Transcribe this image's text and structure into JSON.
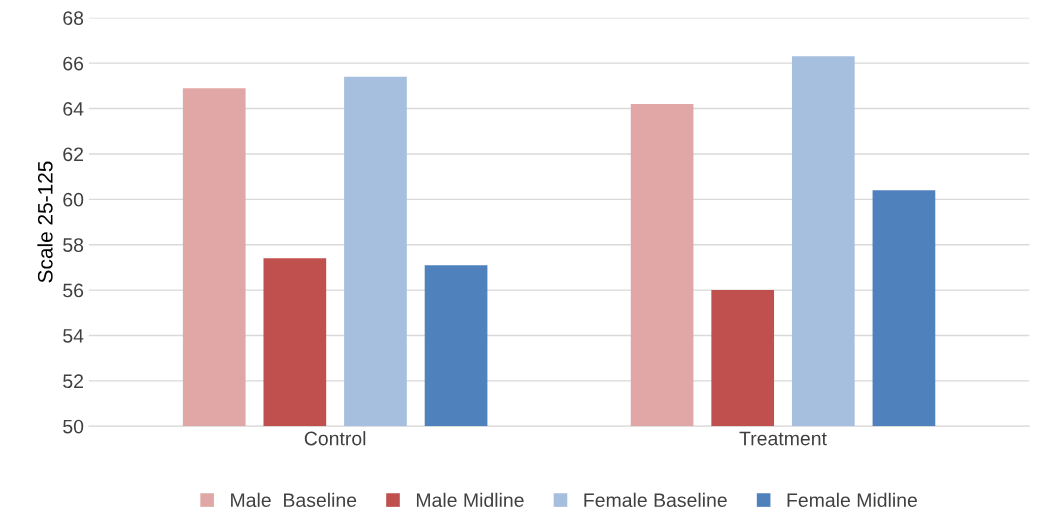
{
  "chart_data": {
    "type": "bar",
    "ylabel": "Scale 25-125",
    "categories": [
      "Control",
      "Treatment"
    ],
    "series": [
      {
        "name": "Male  Baseline",
        "color": "#e0a7a6",
        "values": [
          64.9,
          64.2
        ]
      },
      {
        "name": "Male Midline",
        "color": "#c0504d",
        "values": [
          57.4,
          56.0
        ]
      },
      {
        "name": "Female Baseline",
        "color": "#a7bfde",
        "values": [
          65.4,
          66.3
        ]
      },
      {
        "name": "Female Midline",
        "color": "#4f81bd",
        "values": [
          57.1,
          60.4
        ]
      }
    ],
    "ylim": [
      50,
      68
    ],
    "yticks": [
      50,
      52,
      54,
      56,
      58,
      60,
      62,
      64,
      66,
      68
    ],
    "grid": "y",
    "legend": "bottom"
  }
}
